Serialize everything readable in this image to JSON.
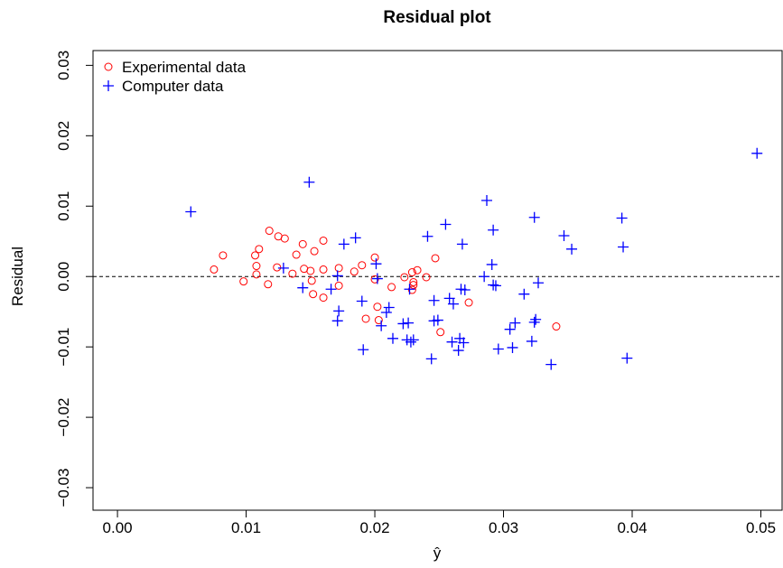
{
  "chart_data": {
    "type": "scatter",
    "title": "Residual plot",
    "x_label": "ŷ",
    "y_label": "Residual",
    "xlim": [
      -0.0019,
      0.05165
    ],
    "ylim": [
      -0.0332,
      0.0321
    ],
    "xticks": [
      {
        "value": 0,
        "label": "0.00"
      },
      0.01,
      0.02,
      0.03,
      0.04,
      0.05
    ],
    "yticks": [
      {
        "value": -0.03,
        "label": "−0.03"
      },
      {
        "value": -0.02,
        "label": "−0.02"
      },
      {
        "value": -0.01,
        "label": "−0.01"
      },
      {
        "value": 0,
        "label": "0.00"
      },
      0.01,
      0.02,
      0.03
    ],
    "reference_line": 0,
    "legend": "top-left",
    "series": [
      {
        "name": "Experimental data",
        "color": "#ff0000",
        "marker": "circle",
        "x": [
          0.0075,
          0.0082,
          0.0098,
          0.0107,
          0.0108,
          0.0108,
          0.011,
          0.0117,
          0.0118,
          0.0124,
          0.0125,
          0.013,
          0.0136,
          0.0139,
          0.0144,
          0.0145,
          0.015,
          0.0151,
          0.0152,
          0.0153,
          0.016,
          0.016,
          0.016,
          0.0172,
          0.0172,
          0.0184,
          0.019,
          0.0193,
          0.02,
          0.02,
          0.0202,
          0.0203,
          0.0213,
          0.0223,
          0.0229,
          0.0229,
          0.023,
          0.023,
          0.0233,
          0.024,
          0.0247,
          0.0251,
          0.0273,
          0.0341
        ],
        "values": [
          0.001,
          0.003,
          -0.0007,
          0.003,
          0.0003,
          0.0015,
          0.0039,
          -0.0011,
          0.0065,
          0.0013,
          0.0057,
          0.0054,
          0.0004,
          0.0031,
          0.0046,
          0.0011,
          0.0008,
          -0.0006,
          -0.0025,
          0.0036,
          0.001,
          0.0051,
          -0.003,
          0.0012,
          -0.0013,
          0.0007,
          0.0016,
          -0.006,
          0.0027,
          -0.0004,
          -0.0043,
          -0.0062,
          -0.0015,
          -0.0001,
          0.0006,
          -0.0019,
          -0.0008,
          -0.0012,
          0.0009,
          -0.0001,
          0.0026,
          -0.0079,
          -0.0037,
          -0.0071
        ]
      },
      {
        "name": "Computer data",
        "color": "#0000ff",
        "marker": "plus",
        "x": [
          0.0057,
          0.0129,
          0.0149,
          0.0144,
          0.0166,
          0.0171,
          0.0172,
          0.0171,
          0.0176,
          0.0185,
          0.019,
          0.0191,
          0.0201,
          0.0202,
          0.0205,
          0.0209,
          0.0211,
          0.0214,
          0.0222,
          0.0225,
          0.0226,
          0.0228,
          0.023,
          0.0227,
          0.0241,
          0.0244,
          0.0246,
          0.0246,
          0.0249,
          0.0255,
          0.0258,
          0.0261,
          0.026,
          0.0265,
          0.0266,
          0.0267,
          0.0268,
          0.0269,
          0.027,
          0.0285,
          0.0287,
          0.0291,
          0.0292,
          0.0292,
          0.0294,
          0.0296,
          0.0305,
          0.0307,
          0.0309,
          0.0316,
          0.0322,
          0.0324,
          0.0325,
          0.0324,
          0.0327,
          0.0337,
          0.0347,
          0.0353,
          0.0392,
          0.0393,
          0.0396,
          0.0497
        ],
        "values": [
          0.0092,
          0.0012,
          0.0134,
          -0.0016,
          -0.0018,
          -0.0063,
          -0.0049,
          0.0001,
          0.0046,
          0.0055,
          -0.0035,
          -0.0104,
          0.0018,
          -0.0003,
          -0.007,
          -0.0051,
          -0.0044,
          -0.0088,
          -0.0067,
          -0.009,
          -0.0066,
          -0.0093,
          -0.009,
          -0.0018,
          0.0057,
          -0.0117,
          -0.0034,
          -0.0063,
          -0.0062,
          0.0074,
          -0.0031,
          -0.0039,
          -0.0093,
          -0.0105,
          -0.0088,
          -0.0018,
          0.0046,
          -0.0094,
          -0.0019,
          0,
          0.0108,
          0.0017,
          0.0066,
          -0.0012,
          -0.0013,
          -0.0103,
          -0.0075,
          -0.0101,
          -0.0066,
          -0.0025,
          -0.0092,
          0.0084,
          -0.0061,
          -0.0065,
          -0.0009,
          -0.0125,
          0.0058,
          0.0039,
          0.0083,
          0.0042,
          -0.0116,
          0.0175
        ]
      }
    ]
  }
}
